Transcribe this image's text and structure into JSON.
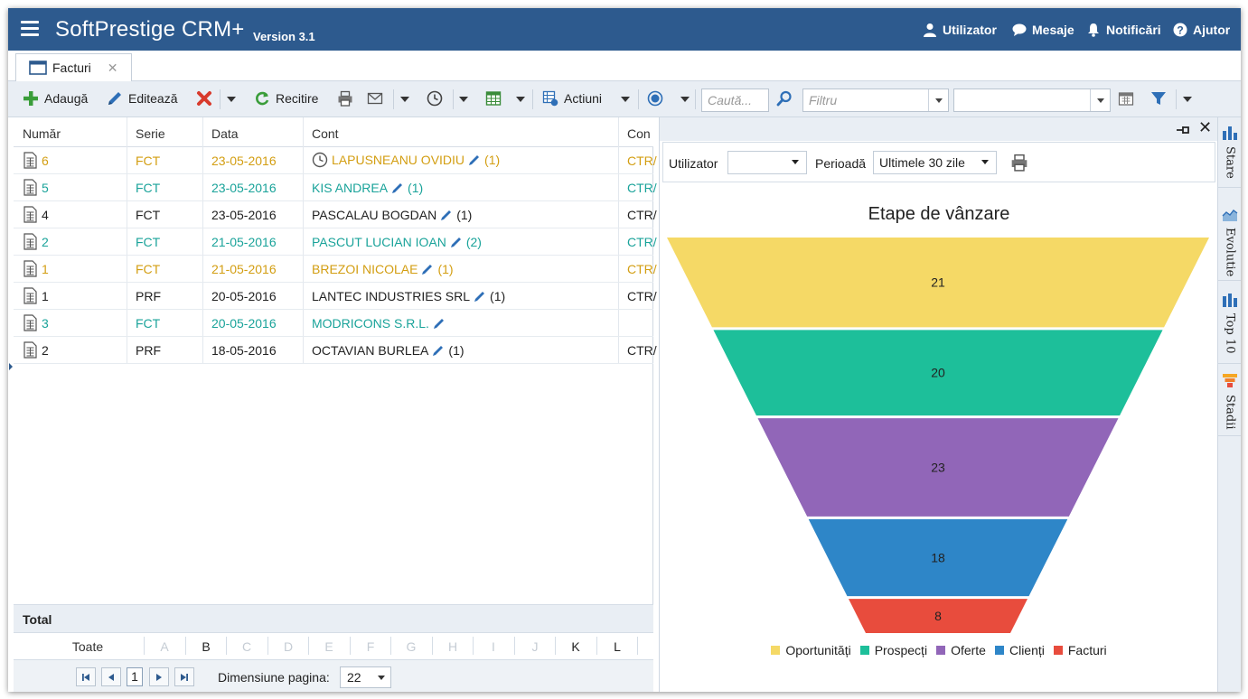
{
  "header": {
    "app_title": "SoftPrestige CRM+",
    "version": "Version 3.1",
    "user_label": "Utilizator",
    "messages_label": "Mesaje",
    "notifications_label": "Notificări",
    "help_label": "Ajutor"
  },
  "tabs": [
    {
      "label": "Facturi"
    }
  ],
  "toolbar": {
    "add_label": "Adaugă",
    "edit_label": "Editează",
    "refresh_label": "Recitire",
    "actions_label": "Actiuni",
    "search_placeholder": "Caută...",
    "filter_placeholder": "Filtru"
  },
  "grid": {
    "columns": [
      "Număr",
      "Serie",
      "Data",
      "Cont",
      "Con"
    ],
    "rows": [
      {
        "numar": "6",
        "serie": "FCT",
        "data": "23-05-2016",
        "cont": "LAPUSNEANU OVIDIU",
        "count": "(1)",
        "contract": "CTR/",
        "color": "#d39e12",
        "clock": true
      },
      {
        "numar": "5",
        "serie": "FCT",
        "data": "23-05-2016",
        "cont": "KIS ANDREA",
        "count": "(1)",
        "contract": "CTR/",
        "color": "#1aa39a",
        "clock": false
      },
      {
        "numar": "4",
        "serie": "FCT",
        "data": "23-05-2016",
        "cont": "PASCALAU BOGDAN",
        "count": "(1)",
        "contract": "CTR/",
        "color": "#222222",
        "clock": false
      },
      {
        "numar": "2",
        "serie": "FCT",
        "data": "21-05-2016",
        "cont": "PASCUT LUCIAN IOAN",
        "count": "(2)",
        "contract": "CTR/",
        "color": "#1aa39a",
        "clock": false
      },
      {
        "numar": "1",
        "serie": "FCT",
        "data": "21-05-2016",
        "cont": "BREZOI NICOLAE",
        "count": "(1)",
        "contract": "CTR/",
        "color": "#d39e12",
        "clock": false
      },
      {
        "numar": "1",
        "serie": "PRF",
        "data": "20-05-2016",
        "cont": "LANTEC INDUSTRIES SRL",
        "count": "(1)",
        "contract": "CTR/",
        "color": "#222222",
        "clock": false
      },
      {
        "numar": "3",
        "serie": "FCT",
        "data": "20-05-2016",
        "cont": "MODRICONS S.R.L.",
        "count": "",
        "contract": "",
        "color": "#1aa39a",
        "clock": false
      },
      {
        "numar": "2",
        "serie": "PRF",
        "data": "18-05-2016",
        "cont": "OCTAVIAN BURLEA",
        "count": "(1)",
        "contract": "CTR/",
        "color": "#222222",
        "clock": false
      }
    ],
    "total_label": "Total"
  },
  "alphabet": {
    "all_label": "Toate",
    "letters": [
      "A",
      "B",
      "C",
      "D",
      "E",
      "F",
      "G",
      "H",
      "I",
      "J",
      "K",
      "L"
    ],
    "active": [
      "B",
      "K",
      "L"
    ]
  },
  "pager": {
    "current_page": "1",
    "page_size_label": "Dimensiune pagina:",
    "page_size": "22"
  },
  "panel": {
    "user_filter_label": "Utilizator",
    "user_filter_value": "",
    "period_label": "Perioadă",
    "period_value": "Ultimele 30 zile"
  },
  "side_tabs": [
    "Stare",
    "Evolutie",
    "Top 10",
    "Stadii"
  ],
  "chart_data": {
    "type": "funnel",
    "title": "Etape de vânzare",
    "categories": [
      "Oportunități",
      "Prospecți",
      "Oferte",
      "Clienți",
      "Facturi"
    ],
    "values": [
      21,
      20,
      23,
      18,
      8
    ],
    "colors": [
      "#f5d966",
      "#1dbf9a",
      "#9166b8",
      "#2e86c8",
      "#e84c3d"
    ],
    "legend_position": "bottom"
  }
}
